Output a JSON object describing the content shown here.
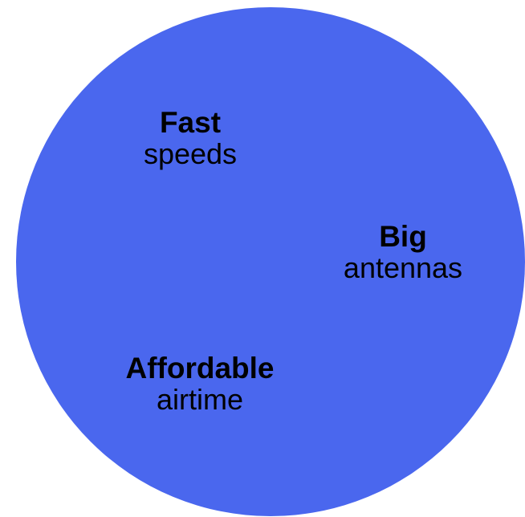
{
  "diagram": {
    "circle_color": "#4a67ee",
    "labels": [
      {
        "strong": "Fast",
        "sub": "speeds"
      },
      {
        "strong": "Big",
        "sub": "antennas"
      },
      {
        "strong": "Affordable",
        "sub": "airtime"
      }
    ]
  }
}
